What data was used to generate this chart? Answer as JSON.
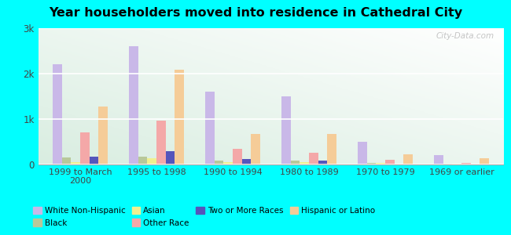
{
  "title": "Year householders moved into residence in Cathedral City",
  "categories": [
    "1999 to March\n2000",
    "1995 to 1998",
    "1990 to 1994",
    "1980 to 1989",
    "1970 to 1979",
    "1969 or earlier"
  ],
  "series_order": [
    "White Non-Hispanic",
    "Black",
    "Asian",
    "Other Race",
    "Two or More Races",
    "Hispanic or Latino"
  ],
  "series": {
    "White Non-Hispanic": [
      2200,
      2600,
      1600,
      1500,
      500,
      200
    ],
    "Black": [
      150,
      170,
      80,
      80,
      30,
      20
    ],
    "Asian": [
      50,
      130,
      60,
      60,
      30,
      10
    ],
    "Other Race": [
      700,
      960,
      340,
      260,
      100,
      30
    ],
    "Two or More Races": [
      170,
      300,
      120,
      90,
      0,
      0
    ],
    "Hispanic or Latino": [
      1280,
      2080,
      680,
      680,
      220,
      130
    ]
  },
  "colors": {
    "White Non-Hispanic": "#c9b8e8",
    "Black": "#b8c89a",
    "Asian": "#f0f090",
    "Other Race": "#f4a8a8",
    "Two or More Races": "#5555bb",
    "Hispanic or Latino": "#f5cc98"
  },
  "ylim": [
    0,
    3000
  ],
  "yticks": [
    0,
    1000,
    2000,
    3000
  ],
  "ytick_labels": [
    "0",
    "1k",
    "2k",
    "3k"
  ],
  "outer_background": "#00ffff",
  "watermark": "City-Data.com",
  "legend_row1": [
    "White Non-Hispanic",
    "Black",
    "Asian",
    "Other Race"
  ],
  "legend_row2": [
    "Two or More Races",
    "Hispanic or Latino"
  ]
}
